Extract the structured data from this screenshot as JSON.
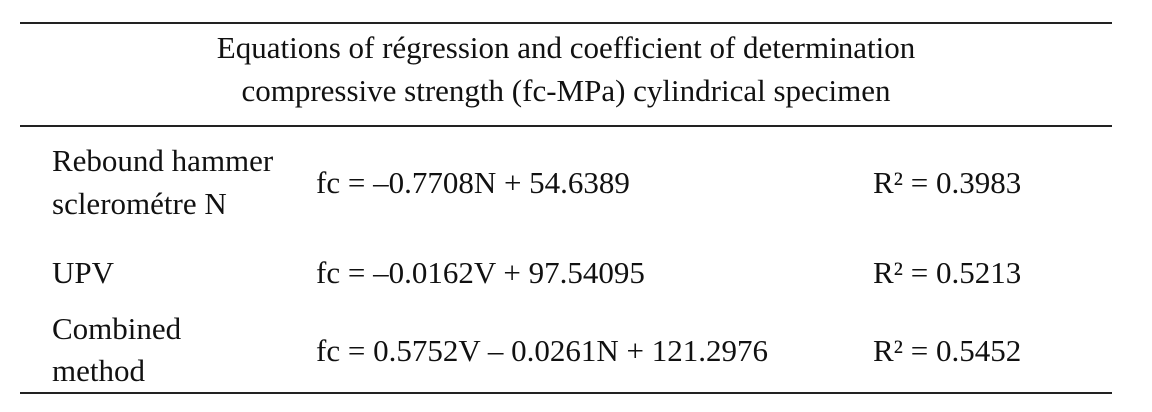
{
  "table": {
    "title": [
      "Equations of régression and coefficient of determination",
      "compressive strength (fc-MPa) cylindrical specimen"
    ],
    "rows": [
      {
        "method": [
          "Rebound hammer",
          "sclerométre N"
        ],
        "equation": "fc = –0.7708N + 54.6389",
        "r2": "R² = 0.3983"
      },
      {
        "method": [
          "UPV"
        ],
        "equation": "fc = –0.0162V + 97.54095",
        "r2": "R² = 0.5213"
      },
      {
        "method": [
          "Combined",
          "method"
        ],
        "equation": "fc = 0.5752V – 0.0261N + 121.2976",
        "r2": "R² = 0.5452"
      }
    ]
  }
}
